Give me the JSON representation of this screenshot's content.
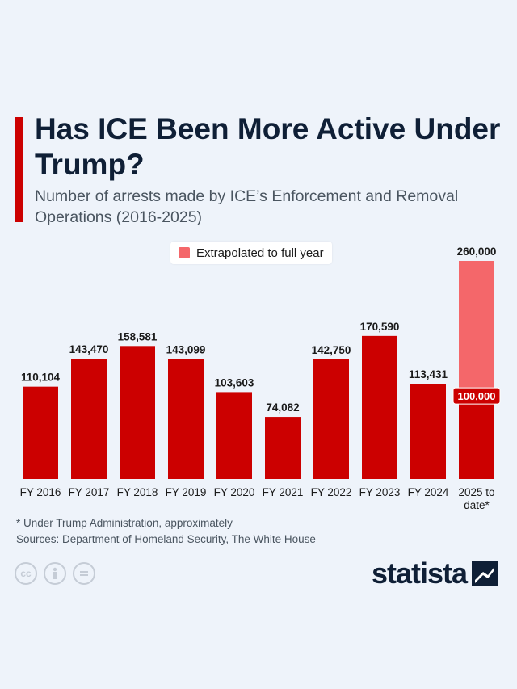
{
  "header": {
    "title": "Has ICE Been More Active Under Trump?",
    "subtitle": "Number of arrests made by ICE’s Enforcement and Removal Operations (2016-2025)"
  },
  "legend": {
    "label": "Extrapolated to full year"
  },
  "footer": {
    "footnote": "* Under Trump Administration, approximately",
    "sources": "Sources: Department of Homeland Security, The White House",
    "brand": "statista",
    "license_icons": [
      "cc-icon",
      "attribution-icon",
      "no-derivatives-icon"
    ]
  },
  "colors": {
    "bar": "#cc0000",
    "extrapolated": "#f4676a",
    "title": "#0f1f36",
    "background": "#eef3fa"
  },
  "chart_data": {
    "type": "bar",
    "title": "Has ICE Been More Active Under Trump?",
    "categories": [
      "FY 2016",
      "FY 2017",
      "FY 2018",
      "FY 2019",
      "FY 2020",
      "FY 2021",
      "FY 2022",
      "FY 2023",
      "FY 2024",
      "2025 to date*"
    ],
    "series": [
      {
        "values": [
          110104,
          143470,
          158581,
          143099,
          103603,
          74082,
          142750,
          170590,
          113431,
          100000
        ]
      },
      {
        "name": "Extrapolated to full year",
        "values": [
          null,
          null,
          null,
          null,
          null,
          null,
          null,
          null,
          null,
          260000
        ]
      }
    ],
    "data_labels": [
      "110,104",
      "143,470",
      "158,581",
      "143,099",
      "103,603",
      "74,082",
      "142,750",
      "170,590",
      "113,431",
      "100,000"
    ],
    "extrapolated_label": "260,000",
    "ylim": [
      0,
      260000
    ],
    "grid": false,
    "legend_position": "top-center"
  }
}
